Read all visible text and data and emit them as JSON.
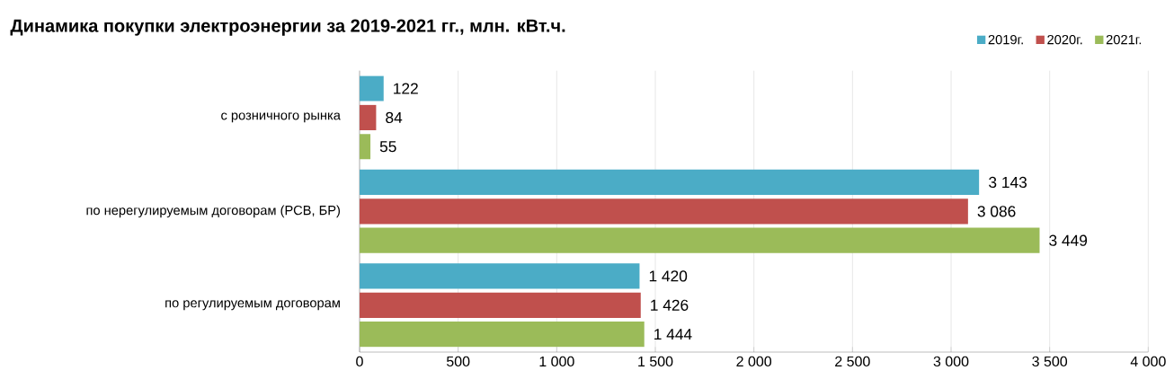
{
  "chart_data": {
    "type": "bar",
    "orientation": "horizontal",
    "title": "Динамика покупки электроэнергии за 2019-2021 гг., млн. кВт.ч.",
    "categories": [
      "с розничного рынка",
      "по нерегулируемым договорам (РСВ, БР)",
      "по регулируемым договорам"
    ],
    "series": [
      {
        "name": "2019г.",
        "color": "#4bacc6",
        "values": [
          122,
          3143,
          1420
        ],
        "value_labels": [
          "122",
          "3 143",
          "1 420"
        ]
      },
      {
        "name": "2020г.",
        "color": "#c0504d",
        "values": [
          84,
          3086,
          1426
        ],
        "value_labels": [
          "84",
          "3 086",
          "1 426"
        ]
      },
      {
        "name": "2021г.",
        "color": "#9bbb59",
        "values": [
          55,
          3449,
          1444
        ],
        "value_labels": [
          "55",
          "3 449",
          "1 444"
        ]
      }
    ],
    "xlim": [
      0,
      4000
    ],
    "xticks": [
      0,
      500,
      {
        "value": 1000,
        "label": "1 000"
      },
      {
        "value": 1500,
        "label": "1 500"
      },
      {
        "value": 2000,
        "label": "2 000"
      },
      {
        "value": 2500,
        "label": "2 500"
      },
      {
        "value": 3000,
        "label": "3 000"
      },
      {
        "value": 3500,
        "label": "3 500"
      },
      {
        "value": 4000,
        "label": "4 000"
      }
    ],
    "grid": "x",
    "legend": "top right"
  }
}
